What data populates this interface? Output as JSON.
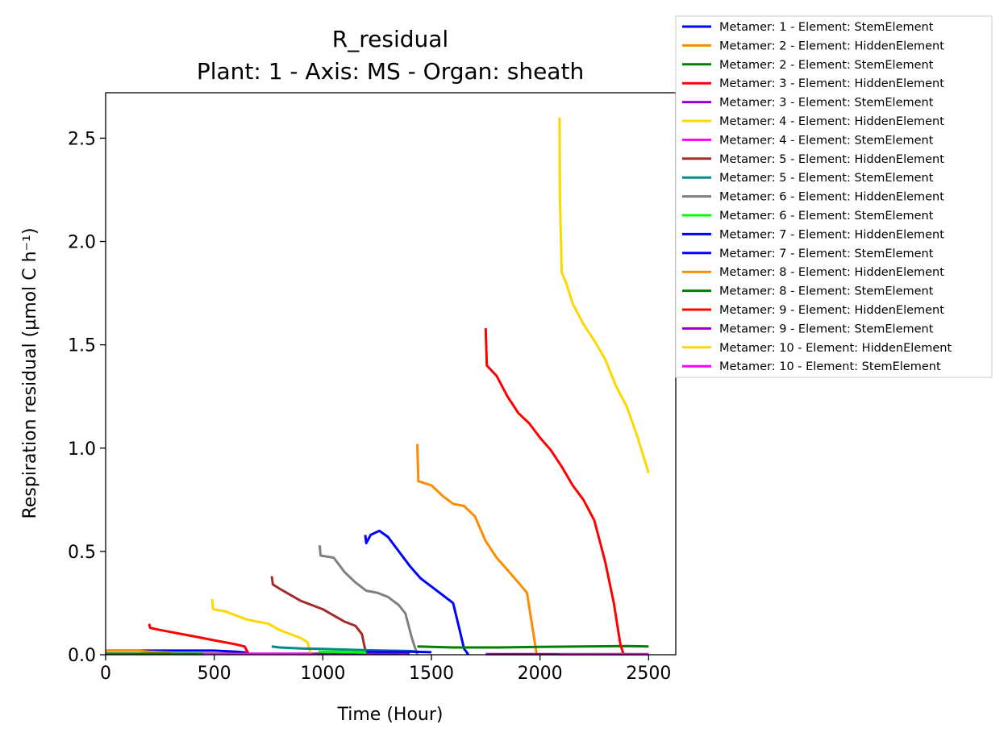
{
  "chart_data": {
    "type": "line",
    "title": "R_residual",
    "subtitle": "Plant: 1 - Axis: MS - Organ: sheath",
    "xlabel": "Time (Hour)",
    "ylabel": "Respiration residual (µmol C h⁻¹)",
    "xlim": [
      0,
      2625
    ],
    "ylim": [
      0,
      2.72
    ],
    "xticks": [
      0,
      500,
      1000,
      1500,
      2000,
      2500
    ],
    "yticks": [
      0.0,
      0.5,
      1.0,
      1.5,
      2.0,
      2.5
    ],
    "xtick_labels": [
      "0",
      "500",
      "1000",
      "1500",
      "2000",
      "2500"
    ],
    "ytick_labels": [
      "0.0",
      "0.5",
      "1.0",
      "1.5",
      "2.0",
      "2.5"
    ],
    "grid": false,
    "legend_position": "outside-top-right",
    "series": [
      {
        "name": "Metamer: 1 - Element: StemElement",
        "color": "#0000ff",
        "x": [
          0,
          100,
          200,
          300,
          400,
          500,
          600,
          650
        ],
        "y": [
          0.02,
          0.02,
          0.02,
          0.02,
          0.02,
          0.02,
          0.015,
          0.01
        ]
      },
      {
        "name": "Metamer: 2 - Element: HiddenElement",
        "color": "#ff8c00",
        "x": [
          0,
          50,
          100,
          150,
          200,
          250,
          300
        ],
        "y": [
          0.02,
          0.02,
          0.02,
          0.02,
          0.015,
          0.012,
          0.01
        ]
      },
      {
        "name": "Metamer: 2 - Element: StemElement",
        "color": "#008000",
        "x": [
          0,
          200,
          400,
          600,
          700
        ],
        "y": [
          0.005,
          0.005,
          0.005,
          0.005,
          0.004
        ]
      },
      {
        "name": "Metamer: 3 - Element: HiddenElement",
        "color": "#ff0000",
        "x": [
          200,
          205,
          250,
          300,
          350,
          400,
          450,
          500,
          550,
          600,
          640,
          660
        ],
        "y": [
          0.15,
          0.13,
          0.12,
          0.11,
          0.1,
          0.09,
          0.08,
          0.07,
          0.06,
          0.05,
          0.04,
          0.0
        ]
      },
      {
        "name": "Metamer: 3 - Element: StemElement",
        "color": "#9400d3",
        "x": [
          650,
          800,
          1000,
          1200,
          1400
        ],
        "y": [
          0.005,
          0.005,
          0.005,
          0.005,
          0.004
        ]
      },
      {
        "name": "Metamer: 4 - Element: HiddenElement",
        "color": "#ffd700",
        "x": [
          490,
          495,
          550,
          600,
          650,
          700,
          750,
          800,
          850,
          900,
          930,
          945
        ],
        "y": [
          0.27,
          0.22,
          0.21,
          0.19,
          0.17,
          0.16,
          0.15,
          0.12,
          0.1,
          0.08,
          0.06,
          0.0
        ]
      },
      {
        "name": "Metamer: 4 - Element: StemElement",
        "color": "#ff00ff",
        "x": [
          450,
          600,
          800,
          950
        ],
        "y": [
          0.004,
          0.004,
          0.004,
          0.003
        ]
      },
      {
        "name": "Metamer: 5 - Element: HiddenElement",
        "color": "#a52a2a",
        "x": [
          765,
          770,
          800,
          850,
          900,
          950,
          1000,
          1050,
          1100,
          1150,
          1180,
          1200
        ],
        "y": [
          0.38,
          0.34,
          0.32,
          0.29,
          0.26,
          0.24,
          0.22,
          0.19,
          0.16,
          0.14,
          0.1,
          0.0
        ]
      },
      {
        "name": "Metamer: 5 - Element: StemElement",
        "color": "#008b8b",
        "x": [
          765,
          800,
          900,
          1000,
          1100,
          1200,
          1300,
          1400,
          1440
        ],
        "y": [
          0.04,
          0.035,
          0.03,
          0.028,
          0.025,
          0.022,
          0.02,
          0.018,
          0.015
        ]
      },
      {
        "name": "Metamer: 6 - Element: HiddenElement",
        "color": "#808080",
        "x": [
          985,
          990,
          1050,
          1100,
          1150,
          1200,
          1250,
          1300,
          1350,
          1380,
          1410,
          1435
        ],
        "y": [
          0.53,
          0.48,
          0.47,
          0.4,
          0.35,
          0.31,
          0.3,
          0.28,
          0.24,
          0.2,
          0.08,
          0.0
        ]
      },
      {
        "name": "Metamer: 6 - Element: StemElement",
        "color": "#00ff00",
        "x": [
          980,
          1050,
          1100,
          1150,
          1200
        ],
        "y": [
          0.015,
          0.014,
          0.013,
          0.012,
          0.01
        ]
      },
      {
        "name": "Metamer: 7 - Element: HiddenElement",
        "color": "#0000ff",
        "x": [
          1195,
          1200,
          1220,
          1260,
          1300,
          1350,
          1400,
          1450,
          1500,
          1550,
          1600,
          1630,
          1650,
          1670
        ],
        "y": [
          0.58,
          0.54,
          0.58,
          0.6,
          0.57,
          0.5,
          0.43,
          0.37,
          0.33,
          0.29,
          0.25,
          0.12,
          0.03,
          0.0
        ]
      },
      {
        "name": "Metamer: 7 - Element: StemElement",
        "color": "#0000ff",
        "x": [
          1200,
          1300,
          1400,
          1500
        ],
        "y": [
          0.015,
          0.015,
          0.015,
          0.012
        ]
      },
      {
        "name": "Metamer: 8 - Element: HiddenElement",
        "color": "#ff8c00",
        "x": [
          1435,
          1440,
          1500,
          1550,
          1600,
          1650,
          1700,
          1750,
          1800,
          1850,
          1900,
          1940,
          1970,
          1985
        ],
        "y": [
          1.02,
          0.84,
          0.82,
          0.77,
          0.73,
          0.72,
          0.67,
          0.55,
          0.47,
          0.41,
          0.35,
          0.3,
          0.1,
          0.0
        ]
      },
      {
        "name": "Metamer: 8 - Element: StemElement",
        "color": "#008000",
        "x": [
          1435,
          1600,
          1800,
          2000,
          2200,
          2400,
          2500
        ],
        "y": [
          0.04,
          0.035,
          0.035,
          0.038,
          0.04,
          0.042,
          0.04
        ]
      },
      {
        "name": "Metamer: 9 - Element: HiddenElement",
        "color": "#ff0000",
        "x": [
          1750,
          1755,
          1800,
          1850,
          1900,
          1950,
          2000,
          2050,
          2100,
          2150,
          2200,
          2250,
          2300,
          2340,
          2370,
          2385
        ],
        "y": [
          1.58,
          1.4,
          1.35,
          1.25,
          1.17,
          1.12,
          1.05,
          0.99,
          0.91,
          0.82,
          0.75,
          0.65,
          0.45,
          0.25,
          0.05,
          0.0
        ]
      },
      {
        "name": "Metamer: 9 - Element: StemElement",
        "color": "#9400d3",
        "x": [
          1750,
          1900,
          2100,
          2300,
          2500
        ],
        "y": [
          0.003,
          0.003,
          0.003,
          0.003,
          0.003
        ]
      },
      {
        "name": "Metamer: 10 - Element: HiddenElement",
        "color": "#ffd700",
        "x": [
          2090,
          2092,
          2100,
          2120,
          2150,
          2200,
          2250,
          2300,
          2350,
          2400,
          2450,
          2500
        ],
        "y": [
          2.6,
          2.2,
          1.85,
          1.8,
          1.7,
          1.6,
          1.52,
          1.43,
          1.3,
          1.2,
          1.05,
          0.88
        ]
      },
      {
        "name": "Metamer: 10 - Element: StemElement",
        "color": "#ff00ff",
        "x": [
          2090,
          2200,
          2300,
          2400,
          2500
        ],
        "y": [
          0.002,
          0.002,
          0.002,
          0.002,
          0.002
        ]
      }
    ]
  }
}
